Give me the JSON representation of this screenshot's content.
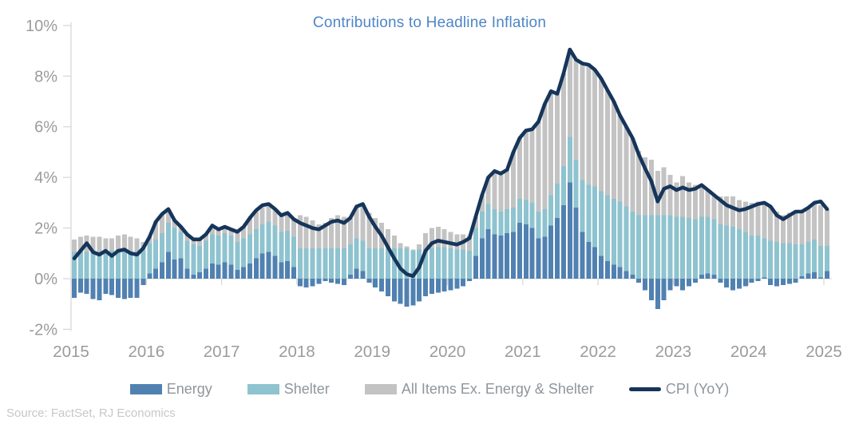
{
  "title": "Contributions to Headline Inflation",
  "source": "Source: FactSet, RJ Economics",
  "colors": {
    "energy": "#5081b1",
    "shelter": "#8ec3cf",
    "all_items_ex": "#c3c3c3",
    "cpi_line": "#16355a",
    "title_text": "#4e86c6",
    "axis_text": "#9b9b9b",
    "axis_line": "#d8d8d8",
    "legend_text": "#8f969c",
    "source_text": "#c5c8ca"
  },
  "legend": {
    "items": [
      {
        "label": "Energy",
        "type": "bar",
        "color": "#5081b1"
      },
      {
        "label": "Shelter",
        "type": "bar",
        "color": "#8ec3cf"
      },
      {
        "label": "All Items Ex. Energy & Shelter",
        "type": "bar",
        "color": "#c3c3c3"
      },
      {
        "label": "CPI (YoY)",
        "type": "line",
        "color": "#16355a"
      }
    ]
  },
  "chart_data": {
    "type": "stacked_bar_with_line",
    "frequency": "monthly",
    "x_start": "2015-01",
    "x_end": "2025-01",
    "x_year_labels": [
      "2015",
      "2016",
      "2017",
      "2018",
      "2019",
      "2020",
      "2021",
      "2022",
      "2023",
      "2024",
      "2025"
    ],
    "y_tick_labels": [
      "10%",
      "8%",
      "6%",
      "4%",
      "2%",
      "0%",
      "-2%"
    ],
    "y_tick_values": [
      10,
      8,
      6,
      4,
      2,
      0,
      -2
    ],
    "ylim": [
      -2,
      10
    ],
    "grid": "y-ticks-only",
    "legend_position": "bottom",
    "unit": "percentage points",
    "series": [
      {
        "name": "Energy",
        "type": "bar",
        "values": [
          -0.75,
          -0.55,
          -0.6,
          -0.8,
          -0.85,
          -0.6,
          -0.65,
          -0.75,
          -0.8,
          -0.75,
          -0.75,
          -0.25,
          0.2,
          0.4,
          0.65,
          1.05,
          0.75,
          0.8,
          0.4,
          0.15,
          0.25,
          0.4,
          0.6,
          0.55,
          0.65,
          0.55,
          0.35,
          0.45,
          0.6,
          0.8,
          1.0,
          1.05,
          0.9,
          0.65,
          0.7,
          0.45,
          -0.3,
          -0.35,
          -0.3,
          -0.2,
          -0.1,
          -0.15,
          -0.2,
          -0.25,
          0.15,
          0.4,
          0.3,
          -0.15,
          -0.35,
          -0.5,
          -0.7,
          -0.9,
          -1.0,
          -1.1,
          -1.05,
          -0.9,
          -0.7,
          -0.6,
          -0.55,
          -0.5,
          -0.45,
          -0.4,
          -0.3,
          -0.1,
          0.9,
          1.6,
          1.95,
          1.75,
          1.7,
          1.8,
          1.85,
          2.2,
          2.15,
          2.0,
          1.6,
          1.65,
          2.1,
          2.4,
          2.9,
          3.8,
          2.8,
          1.85,
          1.45,
          1.25,
          0.9,
          0.7,
          0.55,
          0.45,
          0.3,
          0.15,
          -0.15,
          -0.45,
          -0.85,
          -1.2,
          -0.85,
          -0.45,
          -0.3,
          -0.45,
          -0.3,
          -0.15,
          0.15,
          0.2,
          0.15,
          -0.15,
          -0.35,
          -0.45,
          -0.4,
          -0.3,
          -0.15,
          -0.1,
          0.05,
          -0.25,
          -0.3,
          -0.25,
          -0.2,
          -0.15,
          0.1,
          0.2,
          0.25,
          0.05,
          0.3
        ]
      },
      {
        "name": "Shelter",
        "type": "bar",
        "values": [
          1.05,
          1.05,
          1.05,
          1.05,
          1.05,
          1.05,
          1.1,
          1.1,
          1.1,
          1.1,
          1.1,
          1.1,
          1.2,
          1.15,
          1.15,
          1.15,
          1.25,
          1.05,
          1.1,
          1.2,
          1.05,
          1.1,
          1.15,
          1.15,
          1.15,
          1.15,
          1.1,
          1.15,
          1.15,
          1.15,
          1.15,
          1.2,
          1.2,
          1.2,
          1.2,
          1.2,
          1.2,
          1.2,
          1.2,
          1.2,
          1.2,
          1.2,
          1.2,
          1.2,
          1.2,
          1.2,
          1.2,
          1.2,
          1.2,
          1.2,
          1.2,
          1.2,
          1.2,
          1.2,
          1.1,
          1.15,
          1.2,
          1.2,
          1.25,
          1.25,
          1.2,
          1.15,
          1.15,
          1.1,
          1.1,
          1.05,
          1.0,
          1.0,
          0.95,
          0.95,
          0.95,
          0.95,
          0.95,
          1.0,
          1.05,
          1.1,
          1.2,
          1.35,
          1.55,
          1.8,
          1.9,
          2.05,
          2.25,
          2.4,
          2.55,
          2.6,
          2.6,
          2.6,
          2.55,
          2.5,
          2.5,
          2.5,
          2.5,
          2.5,
          2.5,
          2.5,
          2.45,
          2.45,
          2.4,
          2.35,
          2.3,
          2.25,
          2.2,
          2.15,
          2.1,
          2.05,
          1.95,
          1.85,
          1.7,
          1.7,
          1.55,
          1.5,
          1.45,
          1.4,
          1.4,
          1.35,
          1.25,
          1.25,
          1.3,
          1.25,
          1.0
        ]
      },
      {
        "name": "All Items Ex. Energy & Shelter",
        "type": "bar",
        "values": [
          0.5,
          0.6,
          0.65,
          0.6,
          0.6,
          0.55,
          0.5,
          0.6,
          0.65,
          0.55,
          0.5,
          0.35,
          0.25,
          0.7,
          0.75,
          0.55,
          0.3,
          0.2,
          0.25,
          0.2,
          0.25,
          0.25,
          0.35,
          0.25,
          0.25,
          0.25,
          0.4,
          0.45,
          0.65,
          0.75,
          0.75,
          0.7,
          0.65,
          0.65,
          0.7,
          0.7,
          1.3,
          1.25,
          1.1,
          0.95,
          1.0,
          1.2,
          1.3,
          1.25,
          1.05,
          1.25,
          1.45,
          1.4,
          1.2,
          1.0,
          0.75,
          0.5,
          0.2,
          0.08,
          0.05,
          0.2,
          0.6,
          0.8,
          0.8,
          0.7,
          0.65,
          0.6,
          0.6,
          0.6,
          0.45,
          0.65,
          1.05,
          1.5,
          1.5,
          1.55,
          2.2,
          2.4,
          2.75,
          2.9,
          3.55,
          4.15,
          4.1,
          3.55,
          3.65,
          3.45,
          3.95,
          4.6,
          4.75,
          4.6,
          4.45,
          4.15,
          3.85,
          3.4,
          3.15,
          2.9,
          2.55,
          2.3,
          2.2,
          1.75,
          1.9,
          1.6,
          1.35,
          1.6,
          1.4,
          1.35,
          1.25,
          1.05,
          0.95,
          1.1,
          1.15,
          1.2,
          1.15,
          1.2,
          1.3,
          1.35,
          1.4,
          1.35,
          1.2,
          1.1,
          1.2,
          1.3,
          1.3,
          1.35,
          1.45,
          1.6,
          1.45
        ]
      },
      {
        "name": "CPI (YoY)",
        "type": "line",
        "values": [
          0.8,
          1.1,
          1.4,
          1.05,
          0.95,
          1.1,
          0.9,
          1.1,
          1.15,
          1.0,
          0.95,
          1.2,
          1.65,
          2.25,
          2.55,
          2.75,
          2.3,
          2.05,
          1.75,
          1.55,
          1.55,
          1.75,
          2.1,
          1.95,
          2.05,
          1.95,
          1.85,
          2.05,
          2.4,
          2.7,
          2.9,
          2.95,
          2.75,
          2.5,
          2.6,
          2.35,
          2.2,
          2.1,
          2.0,
          1.95,
          2.1,
          2.25,
          2.3,
          2.2,
          2.4,
          2.85,
          2.95,
          2.45,
          2.05,
          1.7,
          1.25,
          0.8,
          0.4,
          0.18,
          0.1,
          0.45,
          1.1,
          1.4,
          1.5,
          1.45,
          1.4,
          1.35,
          1.45,
          1.6,
          2.45,
          3.3,
          4.0,
          4.25,
          4.15,
          4.3,
          5.0,
          5.55,
          5.85,
          5.9,
          6.2,
          6.9,
          7.4,
          7.3,
          8.1,
          9.05,
          8.65,
          8.5,
          8.45,
          8.25,
          7.9,
          7.45,
          7.0,
          6.45,
          6.0,
          5.55,
          4.9,
          4.35,
          3.85,
          3.05,
          3.55,
          3.65,
          3.5,
          3.6,
          3.5,
          3.55,
          3.7,
          3.5,
          3.3,
          3.1,
          2.9,
          2.8,
          2.7,
          2.75,
          2.85,
          2.95,
          3.0,
          2.85,
          2.5,
          2.35,
          2.5,
          2.65,
          2.65,
          2.8,
          3.0,
          3.05,
          2.75
        ]
      }
    ]
  }
}
